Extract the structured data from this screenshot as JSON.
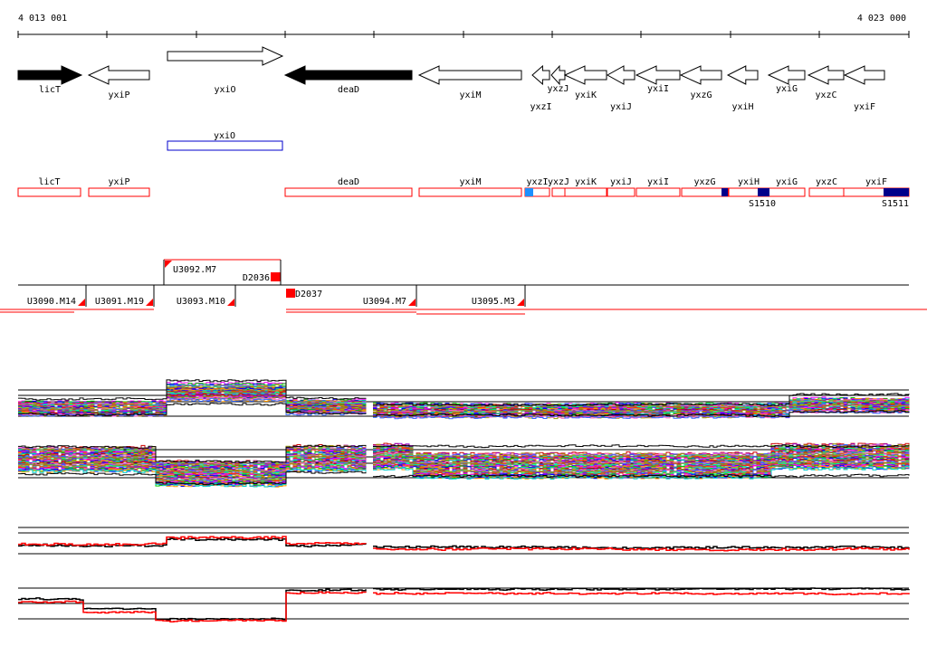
{
  "ruler": {
    "start_label": "4 013 001",
    "end_label": "4 023 000"
  },
  "genes": [
    {
      "name": "licT",
      "strand": "+",
      "filled": true
    },
    {
      "name": "yxiP",
      "strand": "-",
      "filled": false
    },
    {
      "name": "yxiO",
      "strand": "+",
      "filled": false
    },
    {
      "name": "deaD",
      "strand": "-",
      "filled": true
    },
    {
      "name": "yxiM",
      "strand": "-",
      "filled": false
    },
    {
      "name": "yxzI",
      "strand": "-",
      "filled": false
    },
    {
      "name": "yxzJ",
      "strand": "-",
      "filled": false
    },
    {
      "name": "yxiK",
      "strand": "-",
      "filled": false
    },
    {
      "name": "yxiJ",
      "strand": "-",
      "filled": false
    },
    {
      "name": "yxiI",
      "strand": "-",
      "filled": false
    },
    {
      "name": "yxzG",
      "strand": "-",
      "filled": false
    },
    {
      "name": "yxiH",
      "strand": "-",
      "filled": false
    },
    {
      "name": "yxiG",
      "strand": "-",
      "filled": false
    },
    {
      "name": "yxzC",
      "strand": "-",
      "filled": false
    },
    {
      "name": "yxiF",
      "strand": "-",
      "filled": false
    }
  ],
  "plus_transcript": {
    "label": "yxiO"
  },
  "minus_transcripts": {
    "labels": [
      "licT",
      "yxiP",
      "deaD",
      "yxiM",
      "yxzI",
      "yxzJ",
      "yxiK",
      "yxiJ",
      "yxiI",
      "yxzG",
      "yxiH",
      "yxiG",
      "yxzC",
      "yxiF"
    ],
    "site_labels": [
      "S1510",
      "S1511"
    ]
  },
  "segments": {
    "upper": [
      "U3092.M7"
    ],
    "lower": [
      "U3090.M14",
      "U3091.M19",
      "U3093.M10",
      "U3094.M7",
      "U3095.M3"
    ],
    "downshifts": [
      "D2036",
      "D2037"
    ]
  },
  "colors": {
    "red": "#ff0000",
    "blue": "#0000cc",
    "navy": "#00008b",
    "cyan": "#1e90ff",
    "black": "#000000",
    "palette": [
      "#ff00ff",
      "#00cc00",
      "#0000ff",
      "#ff9900",
      "#00cccc",
      "#cc0000",
      "#9900cc",
      "#999900",
      "#ff66cc",
      "#3366ff",
      "#66cc33",
      "#cc6600",
      "#996633",
      "#00ff99",
      "#6600ff",
      "#ff3300"
    ]
  }
}
